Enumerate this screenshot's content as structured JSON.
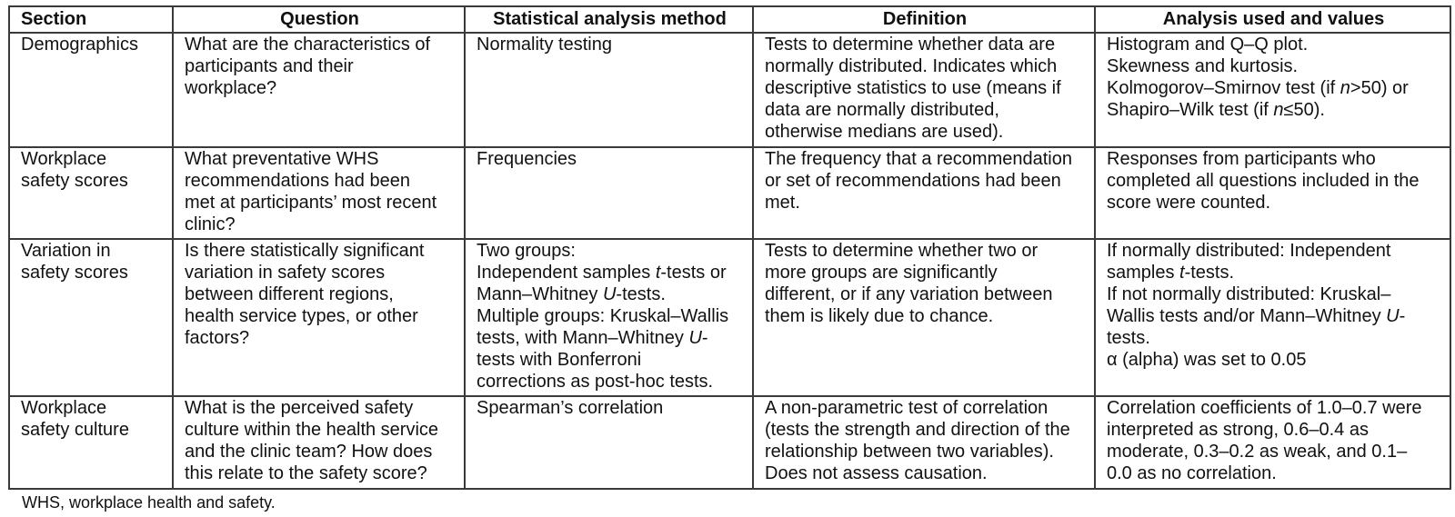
{
  "table": {
    "headers": [
      "Section",
      "Question",
      "Statistical analysis method",
      "Definition",
      "Analysis used and values"
    ],
    "rows": [
      {
        "cells": [
          {
            "lines": [
              [
                {
                  "t": "Demographics"
                }
              ]
            ]
          },
          {
            "lines": [
              [
                {
                  "t": "What are the characteristics of"
                }
              ],
              [
                {
                  "t": "participants and their"
                }
              ],
              [
                {
                  "t": "workplace?"
                }
              ]
            ]
          },
          {
            "lines": [
              [
                {
                  "t": "Normality testing"
                }
              ]
            ]
          },
          {
            "lines": [
              [
                {
                  "t": "Tests to determine whether data are"
                }
              ],
              [
                {
                  "t": "normally distributed. Indicates which"
                }
              ],
              [
                {
                  "t": "descriptive statistics to use (means if"
                }
              ],
              [
                {
                  "t": "data are normally distributed,"
                }
              ],
              [
                {
                  "t": "otherwise medians are used)."
                }
              ]
            ]
          },
          {
            "lines": [
              [
                {
                  "t": "Histogram and Q–Q plot."
                }
              ],
              [
                {
                  "t": "Skewness and kurtosis."
                }
              ],
              [
                {
                  "t": "Kolmogorov–Smirnov test (if "
                },
                {
                  "t": "n",
                  "i": true
                },
                {
                  "t": ">50) or"
                }
              ],
              [
                {
                  "t": "Shapiro–Wilk test (if "
                },
                {
                  "t": "n",
                  "i": true
                },
                {
                  "t": "≤50)."
                }
              ]
            ]
          }
        ]
      },
      {
        "cells": [
          {
            "lines": [
              [
                {
                  "t": "Workplace"
                }
              ],
              [
                {
                  "t": "safety scores"
                }
              ]
            ]
          },
          {
            "lines": [
              [
                {
                  "t": "What preventative WHS"
                }
              ],
              [
                {
                  "t": "recommendations had been"
                }
              ],
              [
                {
                  "t": "met at participants’ most recent"
                }
              ],
              [
                {
                  "t": "clinic?"
                }
              ]
            ]
          },
          {
            "lines": [
              [
                {
                  "t": "Frequencies"
                }
              ]
            ]
          },
          {
            "lines": [
              [
                {
                  "t": "The frequency that a recommendation"
                }
              ],
              [
                {
                  "t": "or set of recommendations had been"
                }
              ],
              [
                {
                  "t": "met."
                }
              ]
            ]
          },
          {
            "lines": [
              [
                {
                  "t": "Responses from participants who"
                }
              ],
              [
                {
                  "t": "completed all questions included in the"
                }
              ],
              [
                {
                  "t": "score were counted."
                }
              ]
            ]
          }
        ]
      },
      {
        "cells": [
          {
            "lines": [
              [
                {
                  "t": "Variation in"
                }
              ],
              [
                {
                  "t": "safety scores"
                }
              ]
            ]
          },
          {
            "lines": [
              [
                {
                  "t": "Is there statistically significant"
                }
              ],
              [
                {
                  "t": "variation in safety scores"
                }
              ],
              [
                {
                  "t": "between different regions,"
                }
              ],
              [
                {
                  "t": "health service types, or other"
                }
              ],
              [
                {
                  "t": "factors?"
                }
              ]
            ]
          },
          {
            "lines": [
              [
                {
                  "t": "Two groups:"
                }
              ],
              [
                {
                  "t": "Independent samples "
                },
                {
                  "t": "t",
                  "i": true
                },
                {
                  "t": "-tests or"
                }
              ],
              [
                {
                  "t": "Mann–Whitney "
                },
                {
                  "t": "U",
                  "i": true
                },
                {
                  "t": "-tests."
                }
              ],
              [
                {
                  "t": "Multiple groups: Kruskal–Wallis"
                }
              ],
              [
                {
                  "t": "tests, with Mann–Whitney "
                },
                {
                  "t": "U",
                  "i": true
                },
                {
                  "t": "-"
                }
              ],
              [
                {
                  "t": "tests with Bonferroni"
                }
              ],
              [
                {
                  "t": "corrections as post-hoc tests."
                }
              ]
            ]
          },
          {
            "lines": [
              [
                {
                  "t": "Tests to determine whether two or"
                }
              ],
              [
                {
                  "t": "more groups are significantly"
                }
              ],
              [
                {
                  "t": "different, or if any variation between"
                }
              ],
              [
                {
                  "t": "them is likely due to chance."
                }
              ]
            ]
          },
          {
            "lines": [
              [
                {
                  "t": "If normally distributed: Independent"
                }
              ],
              [
                {
                  "t": "samples "
                },
                {
                  "t": "t",
                  "i": true
                },
                {
                  "t": "-tests."
                }
              ],
              [
                {
                  "t": "If not normally distributed: Kruskal–"
                }
              ],
              [
                {
                  "t": "Wallis tests and/or Mann–Whitney "
                },
                {
                  "t": "U",
                  "i": true
                },
                {
                  "t": "-"
                }
              ],
              [
                {
                  "t": "tests."
                }
              ],
              [
                {
                  "t": "α (alpha) was set to 0.05"
                }
              ]
            ]
          }
        ]
      },
      {
        "cells": [
          {
            "lines": [
              [
                {
                  "t": "Workplace"
                }
              ],
              [
                {
                  "t": "safety culture"
                }
              ]
            ]
          },
          {
            "lines": [
              [
                {
                  "t": "What is the perceived safety"
                }
              ],
              [
                {
                  "t": "culture within the health service"
                }
              ],
              [
                {
                  "t": "and the clinic team? How does"
                }
              ],
              [
                {
                  "t": "this relate to the safety score?"
                }
              ]
            ]
          },
          {
            "lines": [
              [
                {
                  "t": "Spearman’s correlation"
                }
              ]
            ]
          },
          {
            "lines": [
              [
                {
                  "t": "A non-parametric test of correlation"
                }
              ],
              [
                {
                  "t": "(tests the strength and direction of the"
                }
              ],
              [
                {
                  "t": "relationship between two variables)."
                }
              ],
              [
                {
                  "t": "Does not assess causation."
                }
              ]
            ]
          },
          {
            "lines": [
              [
                {
                  "t": "Correlation coefficients of 1.0–0.7 were"
                }
              ],
              [
                {
                  "t": "interpreted as strong, 0.6–0.4 as"
                }
              ],
              [
                {
                  "t": "moderate, 0.3–0.2 as weak, and 0.1–"
                }
              ],
              [
                {
                  "t": "0.0 as no correlation."
                }
              ]
            ]
          }
        ]
      }
    ]
  },
  "footnote": "WHS, workplace health and safety."
}
